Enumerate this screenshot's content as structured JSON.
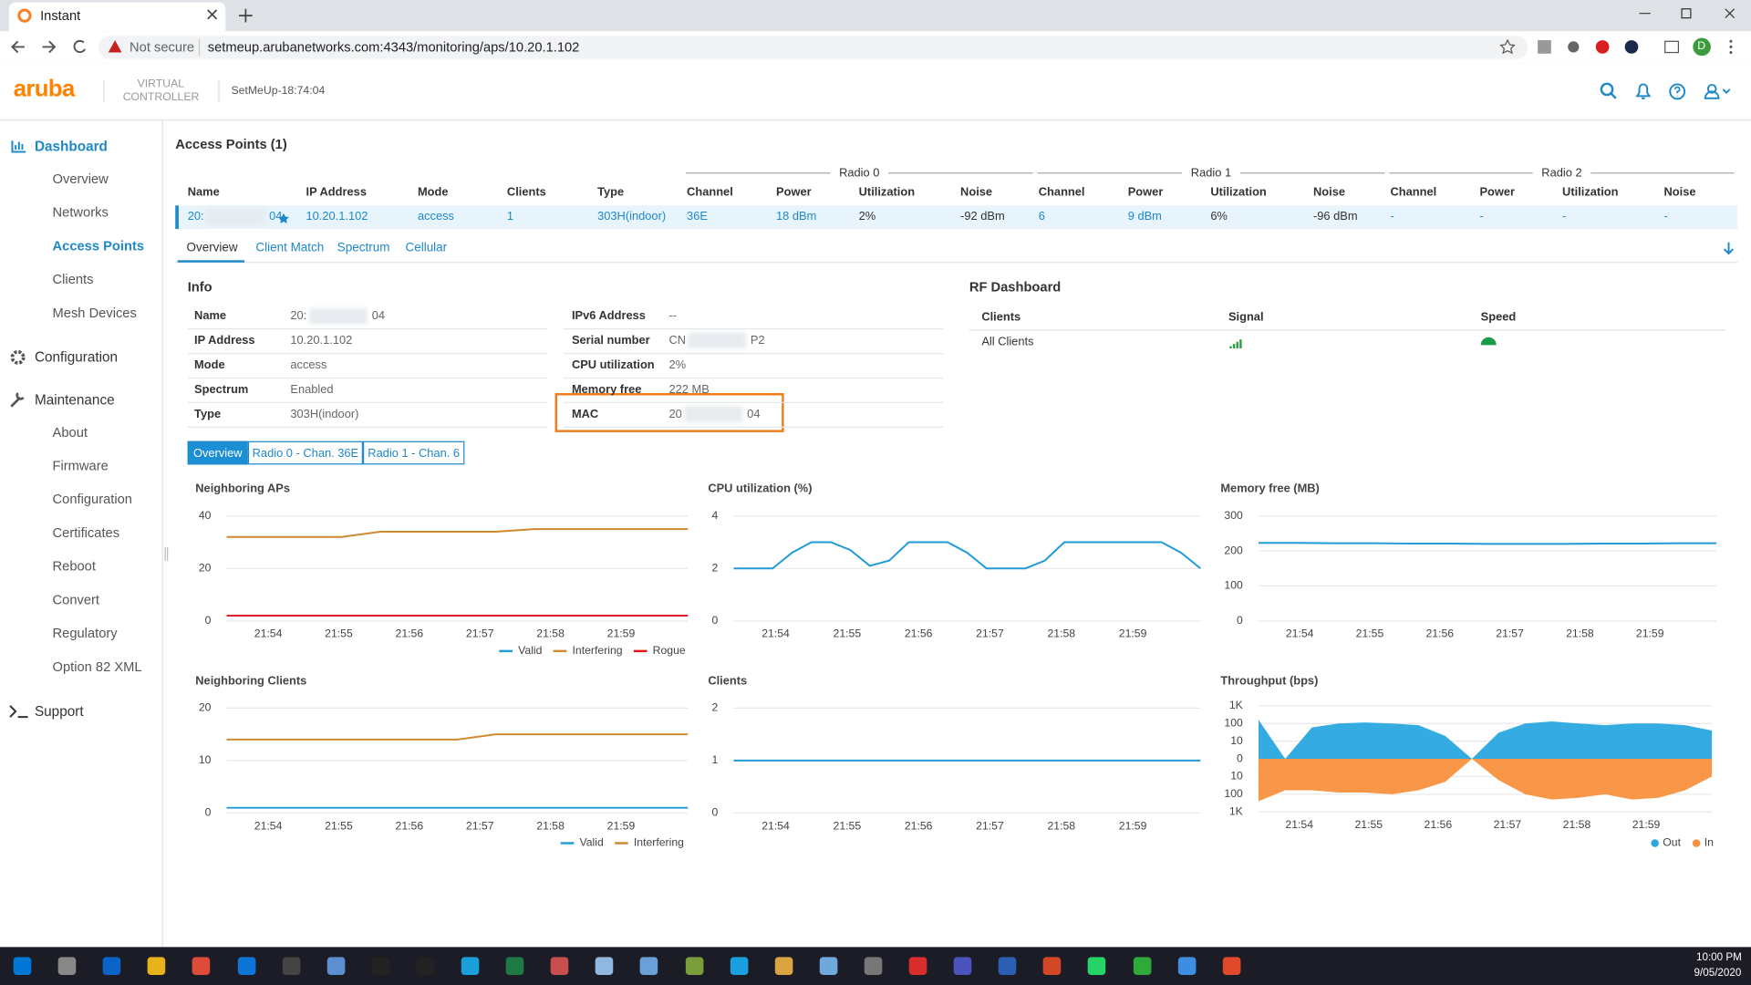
{
  "browser": {
    "tab_title": "Instant",
    "security": "Not secure",
    "url": "setmeup.arubanetworks.com:4343/monitoring/aps/10.20.1.102",
    "profile": "D"
  },
  "header": {
    "logo": "aruba",
    "product": [
      "VIRTUAL",
      "CONTROLLER"
    ],
    "device": "SetMeUp-18:74:04"
  },
  "sidebar": [
    {
      "label": "Dashboard",
      "level": 0,
      "active": true
    },
    {
      "label": "Overview",
      "level": 1,
      "active": false
    },
    {
      "label": "Networks",
      "level": 1,
      "active": false
    },
    {
      "label": "Access Points",
      "level": 1,
      "active": true
    },
    {
      "label": "Clients",
      "level": 1,
      "active": false
    },
    {
      "label": "Mesh Devices",
      "level": 1,
      "active": false
    },
    {
      "label": "Configuration",
      "level": 0,
      "active": false
    },
    {
      "label": "Maintenance",
      "level": 0,
      "active": false
    },
    {
      "label": "About",
      "level": 1,
      "active": false
    },
    {
      "label": "Firmware",
      "level": 1,
      "active": false
    },
    {
      "label": "Configuration",
      "level": 1,
      "active": false
    },
    {
      "label": "Certificates",
      "level": 1,
      "active": false
    },
    {
      "label": "Reboot",
      "level": 1,
      "active": false
    },
    {
      "label": "Convert",
      "level": 1,
      "active": false
    },
    {
      "label": "Regulatory",
      "level": 1,
      "active": false
    },
    {
      "label": "Option 82 XML",
      "level": 1,
      "active": false
    },
    {
      "label": "Support",
      "level": 0,
      "active": false
    }
  ],
  "ap_table": {
    "title": "Access Points (1)",
    "groups": [
      "Radio 0",
      "Radio 1",
      "Radio 2"
    ],
    "columns": [
      "Name",
      "IP Address",
      "Mode",
      "Clients",
      "Type",
      "Channel",
      "Power",
      "Utilization",
      "Noise",
      "Channel",
      "Power",
      "Utilization",
      "Noise",
      "Channel",
      "Power",
      "Utilization",
      "Noise"
    ],
    "row": [
      [
        "20:",
        "04"
      ],
      "10.20.1.102",
      "access",
      "1",
      "303H(indoor)",
      "36E",
      "18 dBm",
      "2%",
      "-92 dBm",
      "6",
      "9 dBm",
      "6%",
      "-96 dBm",
      "-",
      "-",
      "-",
      "-"
    ]
  },
  "tabs": [
    "Overview",
    "Client Match",
    "Spectrum",
    "Cellular"
  ],
  "info": {
    "title": "Info",
    "left": [
      {
        "label": "Name",
        "value": [
          "20:",
          "04"
        ]
      },
      {
        "label": "IP Address",
        "value": "10.20.1.102"
      },
      {
        "label": "Mode",
        "value": "access"
      },
      {
        "label": "Spectrum",
        "value": "Enabled"
      },
      {
        "label": "Type",
        "value": "303H(indoor)"
      }
    ],
    "right": [
      {
        "label": "IPv6 Address",
        "value": "--"
      },
      {
        "label": "Serial number",
        "value": [
          "CN",
          "P2"
        ]
      },
      {
        "label": "CPU utilization",
        "value": "2%"
      },
      {
        "label": "Memory free",
        "value": "222 MB"
      },
      {
        "label": "MAC",
        "value": [
          "20",
          "04"
        ]
      }
    ]
  },
  "rf_dashboard": {
    "title": "RF Dashboard",
    "headers": [
      "Clients",
      "Signal",
      "Speed"
    ],
    "row": "All Clients"
  },
  "subtabs": [
    "Overview",
    "Radio 0 - Chan. 36E",
    "Radio 1 - Chan. 6"
  ],
  "charts": [
    {
      "type": "line",
      "title": "Neighboring APs",
      "ylim": [
        0,
        40
      ],
      "yticks": [
        0,
        20,
        40
      ],
      "xticks": [
        "21:54",
        "21:55",
        "21:56",
        "21:57",
        "21:58",
        "21:59"
      ],
      "series": [
        {
          "name": "Valid",
          "color": "#1f9bd7",
          "values": [
            2,
            2,
            2,
            2,
            2,
            2,
            2,
            2,
            2,
            2,
            2,
            2,
            2
          ]
        },
        {
          "name": "Interfering",
          "color": "#d08a2e",
          "values": [
            32,
            32,
            32,
            32,
            34,
            34,
            34,
            34,
            35,
            35,
            35,
            35,
            35
          ]
        },
        {
          "name": "Rogue",
          "color": "#e3151b",
          "values": [
            2,
            2,
            2,
            2,
            2,
            2,
            2,
            2,
            2,
            2,
            2,
            2,
            2
          ]
        }
      ]
    },
    {
      "type": "line",
      "title": "CPU utilization (%)",
      "ylim": [
        0,
        4
      ],
      "yticks": [
        0,
        2,
        4
      ],
      "xticks": [
        "21:54",
        "21:55",
        "21:56",
        "21:57",
        "21:58",
        "21:59"
      ],
      "series": [
        {
          "color": "#1f9bd7",
          "values": [
            2,
            2,
            2,
            2.6,
            3,
            3,
            2.7,
            2.1,
            2.3,
            3,
            3,
            3,
            2.6,
            2,
            2,
            2,
            2.3,
            3,
            3,
            3,
            3,
            3,
            3,
            2.6,
            2
          ]
        }
      ]
    },
    {
      "type": "line",
      "title": "Memory free (MB)",
      "ylim": [
        0,
        300
      ],
      "yticks": [
        0,
        100,
        200,
        300
      ],
      "xticks": [
        "21:54",
        "21:55",
        "21:56",
        "21:57",
        "21:58",
        "21:59"
      ],
      "series": [
        {
          "color": "#1f9bd7",
          "values": [
            223,
            223,
            222,
            222,
            221,
            221,
            220,
            220,
            220,
            221,
            221,
            222,
            222
          ]
        }
      ]
    },
    {
      "type": "line",
      "title": "Neighboring Clients",
      "ylim": [
        0,
        20
      ],
      "yticks": [
        0,
        10,
        20
      ],
      "xticks": [
        "21:54",
        "21:55",
        "21:56",
        "21:57",
        "21:58",
        "21:59"
      ],
      "series": [
        {
          "name": "Valid",
          "color": "#1f9bd7",
          "values": [
            1,
            1,
            1,
            1,
            1,
            1,
            1,
            1,
            1,
            1,
            1,
            1,
            1
          ]
        },
        {
          "name": "Interfering",
          "color": "#d08a2e",
          "values": [
            14,
            14,
            14,
            14,
            14,
            14,
            14,
            15,
            15,
            15,
            15,
            15,
            15
          ]
        }
      ]
    },
    {
      "type": "line",
      "title": "Clients",
      "ylim": [
        0,
        2
      ],
      "yticks": [
        0,
        1,
        2
      ],
      "xticks": [
        "21:54",
        "21:55",
        "21:56",
        "21:57",
        "21:58",
        "21:59"
      ],
      "series": [
        {
          "color": "#1f9bd7",
          "values": [
            1,
            1,
            1,
            1,
            1,
            1,
            1,
            1,
            1,
            1,
            1,
            1,
            1
          ]
        }
      ]
    },
    {
      "type": "area",
      "title": "Throughput (bps)",
      "yscale": "symlog",
      "ylim": [
        -1000,
        1000
      ],
      "yticks": [
        {
          "value": 1000,
          "label": "1K"
        },
        100,
        10,
        0,
        {
          "value": -10,
          "label": "10"
        },
        {
          "value": -100,
          "label": "100"
        },
        {
          "value": -1000,
          "label": "1K"
        }
      ],
      "xticks": [
        "21:54",
        "21:55",
        "21:56",
        "21:57",
        "21:58",
        "21:59"
      ],
      "series": [
        {
          "name": "Out",
          "color": "#29a8e0",
          "values": [
            160,
            1,
            60,
            100,
            115,
            100,
            80,
            20,
            1,
            30,
            100,
            130,
            100,
            80,
            100,
            100,
            80,
            40
          ]
        },
        {
          "name": "In",
          "color": "#f7913d",
          "values": [
            -250,
            -60,
            -60,
            -80,
            -80,
            -100,
            -60,
            -20,
            -1,
            -16,
            -100,
            -200,
            -160,
            -100,
            -200,
            -160,
            -60,
            -10
          ]
        }
      ]
    }
  ],
  "taskbar": {
    "time": "10:00 PM",
    "date": "9/05/2020"
  }
}
